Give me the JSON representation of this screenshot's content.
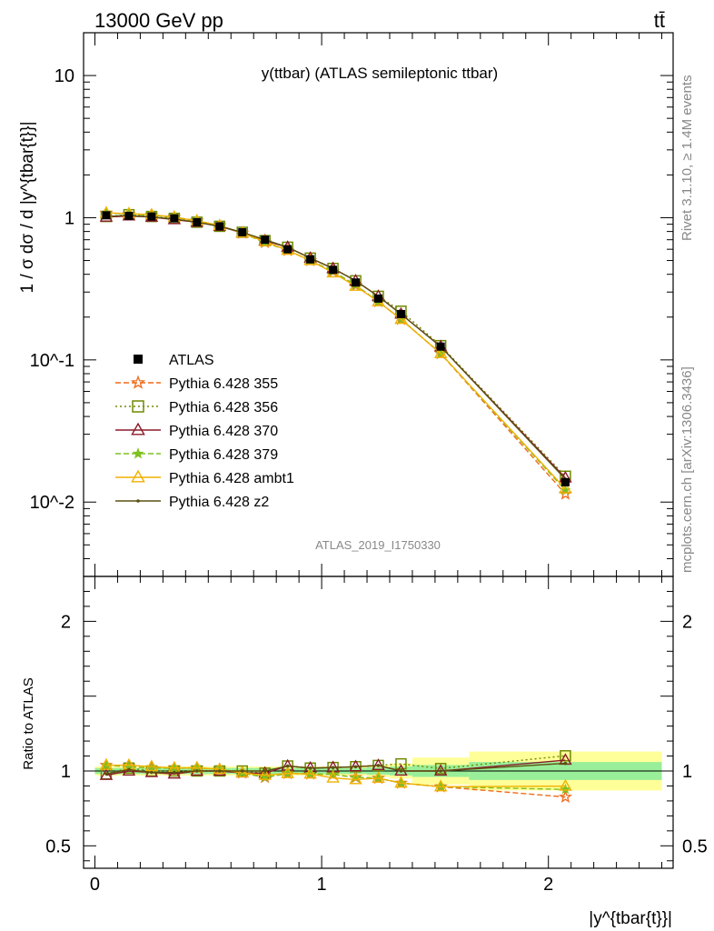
{
  "header": {
    "left": "13000 GeV pp",
    "right": "tt̄"
  },
  "side_labels": {
    "top": "Rivet 3.1.10, ≥ 1.4M events",
    "bottom": "mcplots.cern.ch [arXiv:1306.3436]"
  },
  "watermark": "ATLAS_2019_I1750330",
  "chart_data": [
    {
      "type": "line",
      "title": "y(ttbar) (ATLAS semileptonic ttbar)",
      "ylabel": "1 / σ dσ / d |y^{tbar{t}}|",
      "yscale": "log",
      "ylim": [
        0.003,
        20
      ],
      "xlim": [
        -0.05,
        2.55
      ],
      "y_ticks": [
        {
          "value": 0.01,
          "label": "10^-2"
        },
        {
          "value": 0.1,
          "label": "10^-1"
        },
        {
          "value": 1,
          "label": "1"
        },
        {
          "value": 10,
          "label": "10"
        }
      ],
      "x": [
        0.05,
        0.15,
        0.25,
        0.35,
        0.45,
        0.55,
        0.65,
        0.75,
        0.85,
        0.95,
        1.05,
        1.15,
        1.25,
        1.35,
        1.525,
        2.075
      ],
      "data": {
        "name": "ATLAS",
        "values": [
          1.04,
          1.03,
          1.02,
          0.99,
          0.93,
          0.87,
          0.79,
          0.7,
          0.6,
          0.51,
          0.43,
          0.35,
          0.27,
          0.21,
          0.124,
          0.0138
        ]
      },
      "series": [
        {
          "name": "Pythia 6.428 355",
          "color": "#f06a1a",
          "marker": "star-open",
          "dash": "6,3",
          "values": [
            1.08,
            1.06,
            1.04,
            1.01,
            0.95,
            0.88,
            0.78,
            0.67,
            0.59,
            0.5,
            0.42,
            0.335,
            0.257,
            0.193,
            0.111,
            0.0114
          ]
        },
        {
          "name": "Pythia 6.428 356",
          "color": "#6e8a00",
          "marker": "square-open",
          "dash": "2,3",
          "values": [
            1.02,
            1.05,
            1.02,
            0.99,
            0.93,
            0.87,
            0.79,
            0.69,
            0.62,
            0.52,
            0.44,
            0.36,
            0.28,
            0.22,
            0.126,
            0.0152
          ]
        },
        {
          "name": "Pythia 6.428 370",
          "color": "#8b1a2a",
          "marker": "triangle-open",
          "dash": "",
          "values": [
            1.01,
            1.03,
            1.01,
            0.97,
            0.93,
            0.87,
            0.78,
            0.69,
            0.62,
            0.52,
            0.44,
            0.36,
            0.28,
            0.21,
            0.124,
            0.0148
          ]
        },
        {
          "name": "Pythia 6.428 379",
          "color": "#7ec020",
          "marker": "star-filled",
          "dash": "6,3",
          "values": [
            1.08,
            1.06,
            1.04,
            1.01,
            0.95,
            0.88,
            0.78,
            0.67,
            0.59,
            0.5,
            0.42,
            0.335,
            0.257,
            0.193,
            0.111,
            0.0121
          ]
        },
        {
          "name": "Pythia 6.428 ambt1",
          "color": "#f0b000",
          "marker": "triangle-open",
          "dash": "",
          "values": [
            1.08,
            1.07,
            1.05,
            1.01,
            0.95,
            0.88,
            0.78,
            0.68,
            0.59,
            0.5,
            0.41,
            0.33,
            0.257,
            0.193,
            0.111,
            0.0124
          ]
        },
        {
          "name": "Pythia 6.428 z2",
          "color": "#5c5010",
          "marker": "dot",
          "dash": "",
          "values": [
            1.02,
            1.04,
            1.01,
            0.98,
            0.93,
            0.87,
            0.79,
            0.7,
            0.62,
            0.52,
            0.44,
            0.36,
            0.28,
            0.21,
            0.124,
            0.0145
          ]
        }
      ]
    },
    {
      "type": "line",
      "title": "",
      "ylabel": "Ratio to ATLAS",
      "xlabel": "|y^{tbar{t}}|",
      "ylim": [
        0.35,
        2.3
      ],
      "xlim": [
        -0.05,
        2.55
      ],
      "x_ticks": [
        {
          "value": 0,
          "label": "0"
        },
        {
          "value": 1,
          "label": "1"
        },
        {
          "value": 2,
          "label": "2"
        }
      ],
      "y_ticks": [
        {
          "value": 0.5,
          "label": "0.5"
        },
        {
          "value": 1,
          "label": "1"
        },
        {
          "value": 2,
          "label": "2"
        }
      ],
      "x_edges": [
        0.0,
        0.1,
        0.2,
        0.3,
        0.4,
        0.5,
        0.6,
        0.7,
        0.8,
        0.9,
        1.0,
        1.1,
        1.2,
        1.3,
        1.4,
        1.65,
        2.5
      ],
      "band_stat": [
        0.02,
        0.02,
        0.02,
        0.02,
        0.02,
        0.02,
        0.02,
        0.02,
        0.02,
        0.02,
        0.02,
        0.02,
        0.025,
        0.03,
        0.04,
        0.06
      ],
      "band_total": [
        0.03,
        0.03,
        0.03,
        0.03,
        0.03,
        0.03,
        0.03,
        0.03,
        0.03,
        0.03,
        0.03,
        0.03,
        0.04,
        0.05,
        0.09,
        0.13
      ]
    }
  ]
}
